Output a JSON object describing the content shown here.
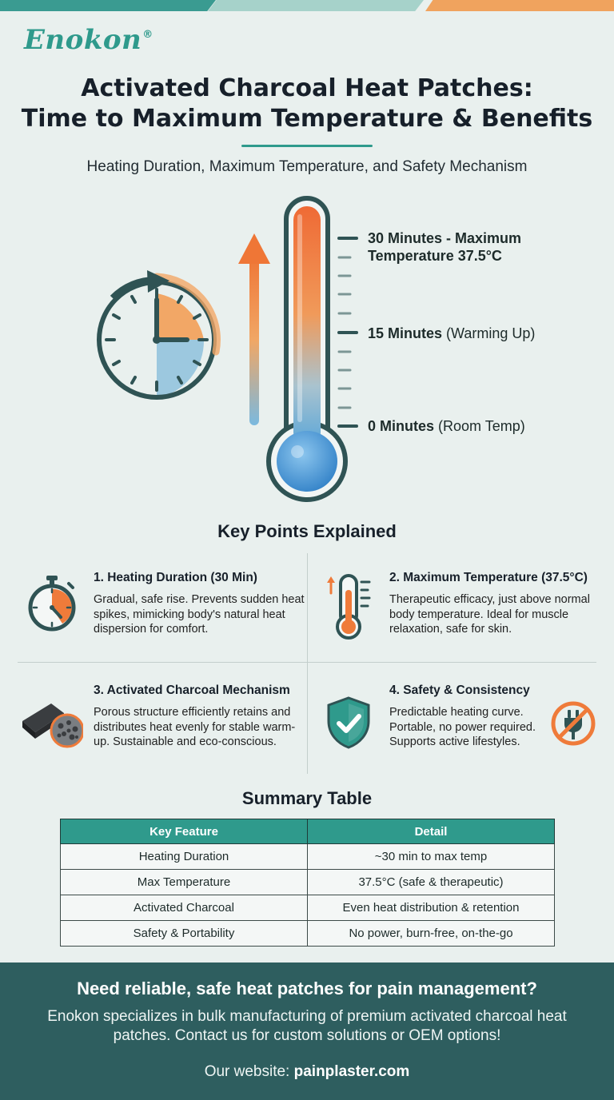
{
  "brand": {
    "name": "Enokon",
    "mark": "®"
  },
  "title": {
    "line1": "Activated Charcoal Heat Patches:",
    "line2": "Time to Maximum Temperature & Benefits"
  },
  "subtitle": "Heating Duration, Maximum Temperature, and Safety Mechanism",
  "thermometer": {
    "label_30": {
      "bold": "30 Minutes - Maximum",
      "bold2": "Temperature 37.5°C"
    },
    "label_15": {
      "bold": "15 Minutes",
      "rest": " (Warming Up)"
    },
    "label_0": {
      "bold": "0 Minutes",
      "rest": " (Room Temp)"
    }
  },
  "key_points": {
    "heading": "Key Points Explained",
    "items": [
      {
        "title": "1. Heating Duration (30 Min)",
        "body": "Gradual, safe rise. Prevents sudden heat spikes, mimicking body's natural heat dispersion for comfort.",
        "icon": "stopwatch-icon"
      },
      {
        "title": "2. Maximum Temperature (37.5°C)",
        "body": "Therapeutic efficacy, just above normal body temperature. Ideal for muscle relaxation, safe for skin.",
        "icon": "thermometer-icon"
      },
      {
        "title": "3. Activated Charcoal Mechanism",
        "body": "Porous structure efficiently retains and distributes heat evenly for stable warm-up. Sustainable and eco-conscious.",
        "icon": "charcoal-icon"
      },
      {
        "title": "4. Safety & Consistency",
        "body": "Predictable heating curve. Portable, no power required. Supports active lifestyles.",
        "icon": "shield-check-icon"
      }
    ]
  },
  "summary": {
    "heading": "Summary Table",
    "headers": [
      "Key Feature",
      "Detail"
    ],
    "rows": [
      [
        "Heating Duration",
        "~30 min to max temp"
      ],
      [
        "Max Temperature",
        "37.5°C (safe & therapeutic)"
      ],
      [
        "Activated Charcoal",
        "Even heat distribution & retention"
      ],
      [
        "Safety & Portability",
        "No power, burn-free, on-the-go"
      ]
    ]
  },
  "footer": {
    "heading": "Need reliable, safe heat patches for pain management?",
    "body": "Enokon specializes in bulk manufacturing of premium activated charcoal heat patches. Contact us for custom solutions or OEM options!",
    "site_prefix": "Our website: ",
    "site": "painplaster.com"
  },
  "colors": {
    "teal": "#2f9a8c",
    "orange": "#ef7b3a",
    "blue": "#4a9bd6",
    "dark_teal": "#2e5e5f"
  }
}
